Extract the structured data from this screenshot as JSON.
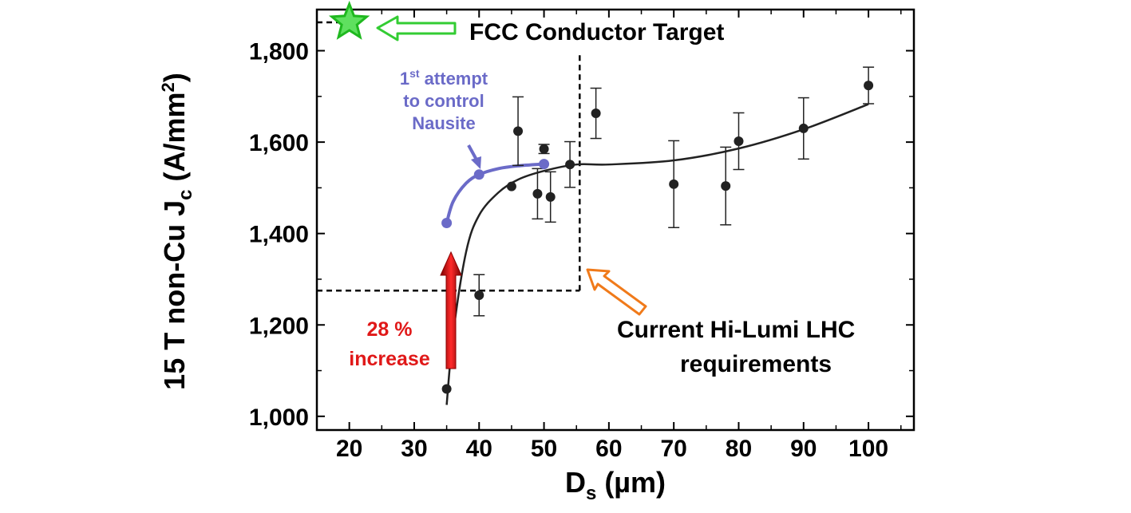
{
  "chart_data": {
    "type": "scatter",
    "xlabel": {
      "main": "D",
      "sub": "s",
      "rest": " (µm)"
    },
    "ylabel": {
      "main": "15 T non-Cu J",
      "sub": "c",
      "rest": " (A/mm",
      "sup": "2",
      "end": ")"
    },
    "xlim": [
      15,
      107
    ],
    "ylim": [
      970,
      1890
    ],
    "xticks": [
      20,
      30,
      40,
      50,
      60,
      70,
      80,
      90,
      100
    ],
    "xtick_labels": [
      "20",
      "30",
      "40",
      "50",
      "60",
      "70",
      "80",
      "90",
      "100"
    ],
    "yticks": [
      1000,
      1200,
      1400,
      1600,
      1800
    ],
    "ytick_labels": [
      "1,000",
      "1,200",
      "1,400",
      "1,600",
      "1,800"
    ],
    "grid": false,
    "series": [
      {
        "color": "#222222",
        "points": [
          {
            "x": 35,
            "y": 1060
          },
          {
            "x": 40,
            "y": 1265,
            "err": 45
          },
          {
            "x": 45,
            "y": 1503
          },
          {
            "x": 46,
            "y": 1624,
            "err": 75
          },
          {
            "x": 49,
            "y": 1487,
            "err": 55
          },
          {
            "x": 50,
            "y": 1585,
            "err": 10
          },
          {
            "x": 51,
            "y": 1480,
            "err": 55
          },
          {
            "x": 54,
            "y": 1551,
            "err": 50
          },
          {
            "x": 58,
            "y": 1663,
            "err": 55
          },
          {
            "x": 70,
            "y": 1508,
            "err": 95
          },
          {
            "x": 78,
            "y": 1504,
            "err": 85
          },
          {
            "x": 80,
            "y": 1602,
            "err": 62
          },
          {
            "x": 90,
            "y": 1630,
            "err": 67
          },
          {
            "x": 100,
            "y": 1724,
            "err": 40
          }
        ],
        "fit": [
          [
            35,
            1025
          ],
          [
            36,
            1180
          ],
          [
            38,
            1360
          ],
          [
            40,
            1440
          ],
          [
            43,
            1490
          ],
          [
            46,
            1518
          ],
          [
            50,
            1537
          ],
          [
            55,
            1551
          ],
          [
            60,
            1551
          ],
          [
            70,
            1560
          ],
          [
            80,
            1586
          ],
          [
            90,
            1628
          ],
          [
            100,
            1683
          ]
        ]
      },
      {
        "color": "#6b6bc8",
        "points": [
          {
            "x": 35,
            "y": 1423
          },
          {
            "x": 40,
            "y": 1529
          },
          {
            "x": 50,
            "y": 1552
          }
        ],
        "fit": [
          [
            35,
            1423
          ],
          [
            36,
            1470
          ],
          [
            38,
            1510
          ],
          [
            40,
            1529
          ],
          [
            43,
            1542
          ],
          [
            46,
            1548
          ],
          [
            50,
            1552
          ]
        ]
      }
    ],
    "requirement_box": {
      "x": 55.5,
      "y": 1275
    },
    "target": {
      "x": 20,
      "y": 1862
    },
    "annotations": {
      "target_label": "FCC Conductor Target",
      "lhc_label_line1": "Current Hi-Lumi LHC",
      "lhc_label_line2": "requirements",
      "increase_line1": "28 %",
      "increase_line2": "increase",
      "attempt_line1_main": "1",
      "attempt_line1_sup": "st",
      "attempt_line1_rest": " attempt",
      "attempt_line2": "to control",
      "attempt_line3": "Nausite"
    },
    "colors": {
      "main": "#222222",
      "attempt": "#6b6bc8",
      "increase": "#e01818",
      "target": "#33cc33",
      "lhc_arrow": "#f07a1a"
    }
  }
}
